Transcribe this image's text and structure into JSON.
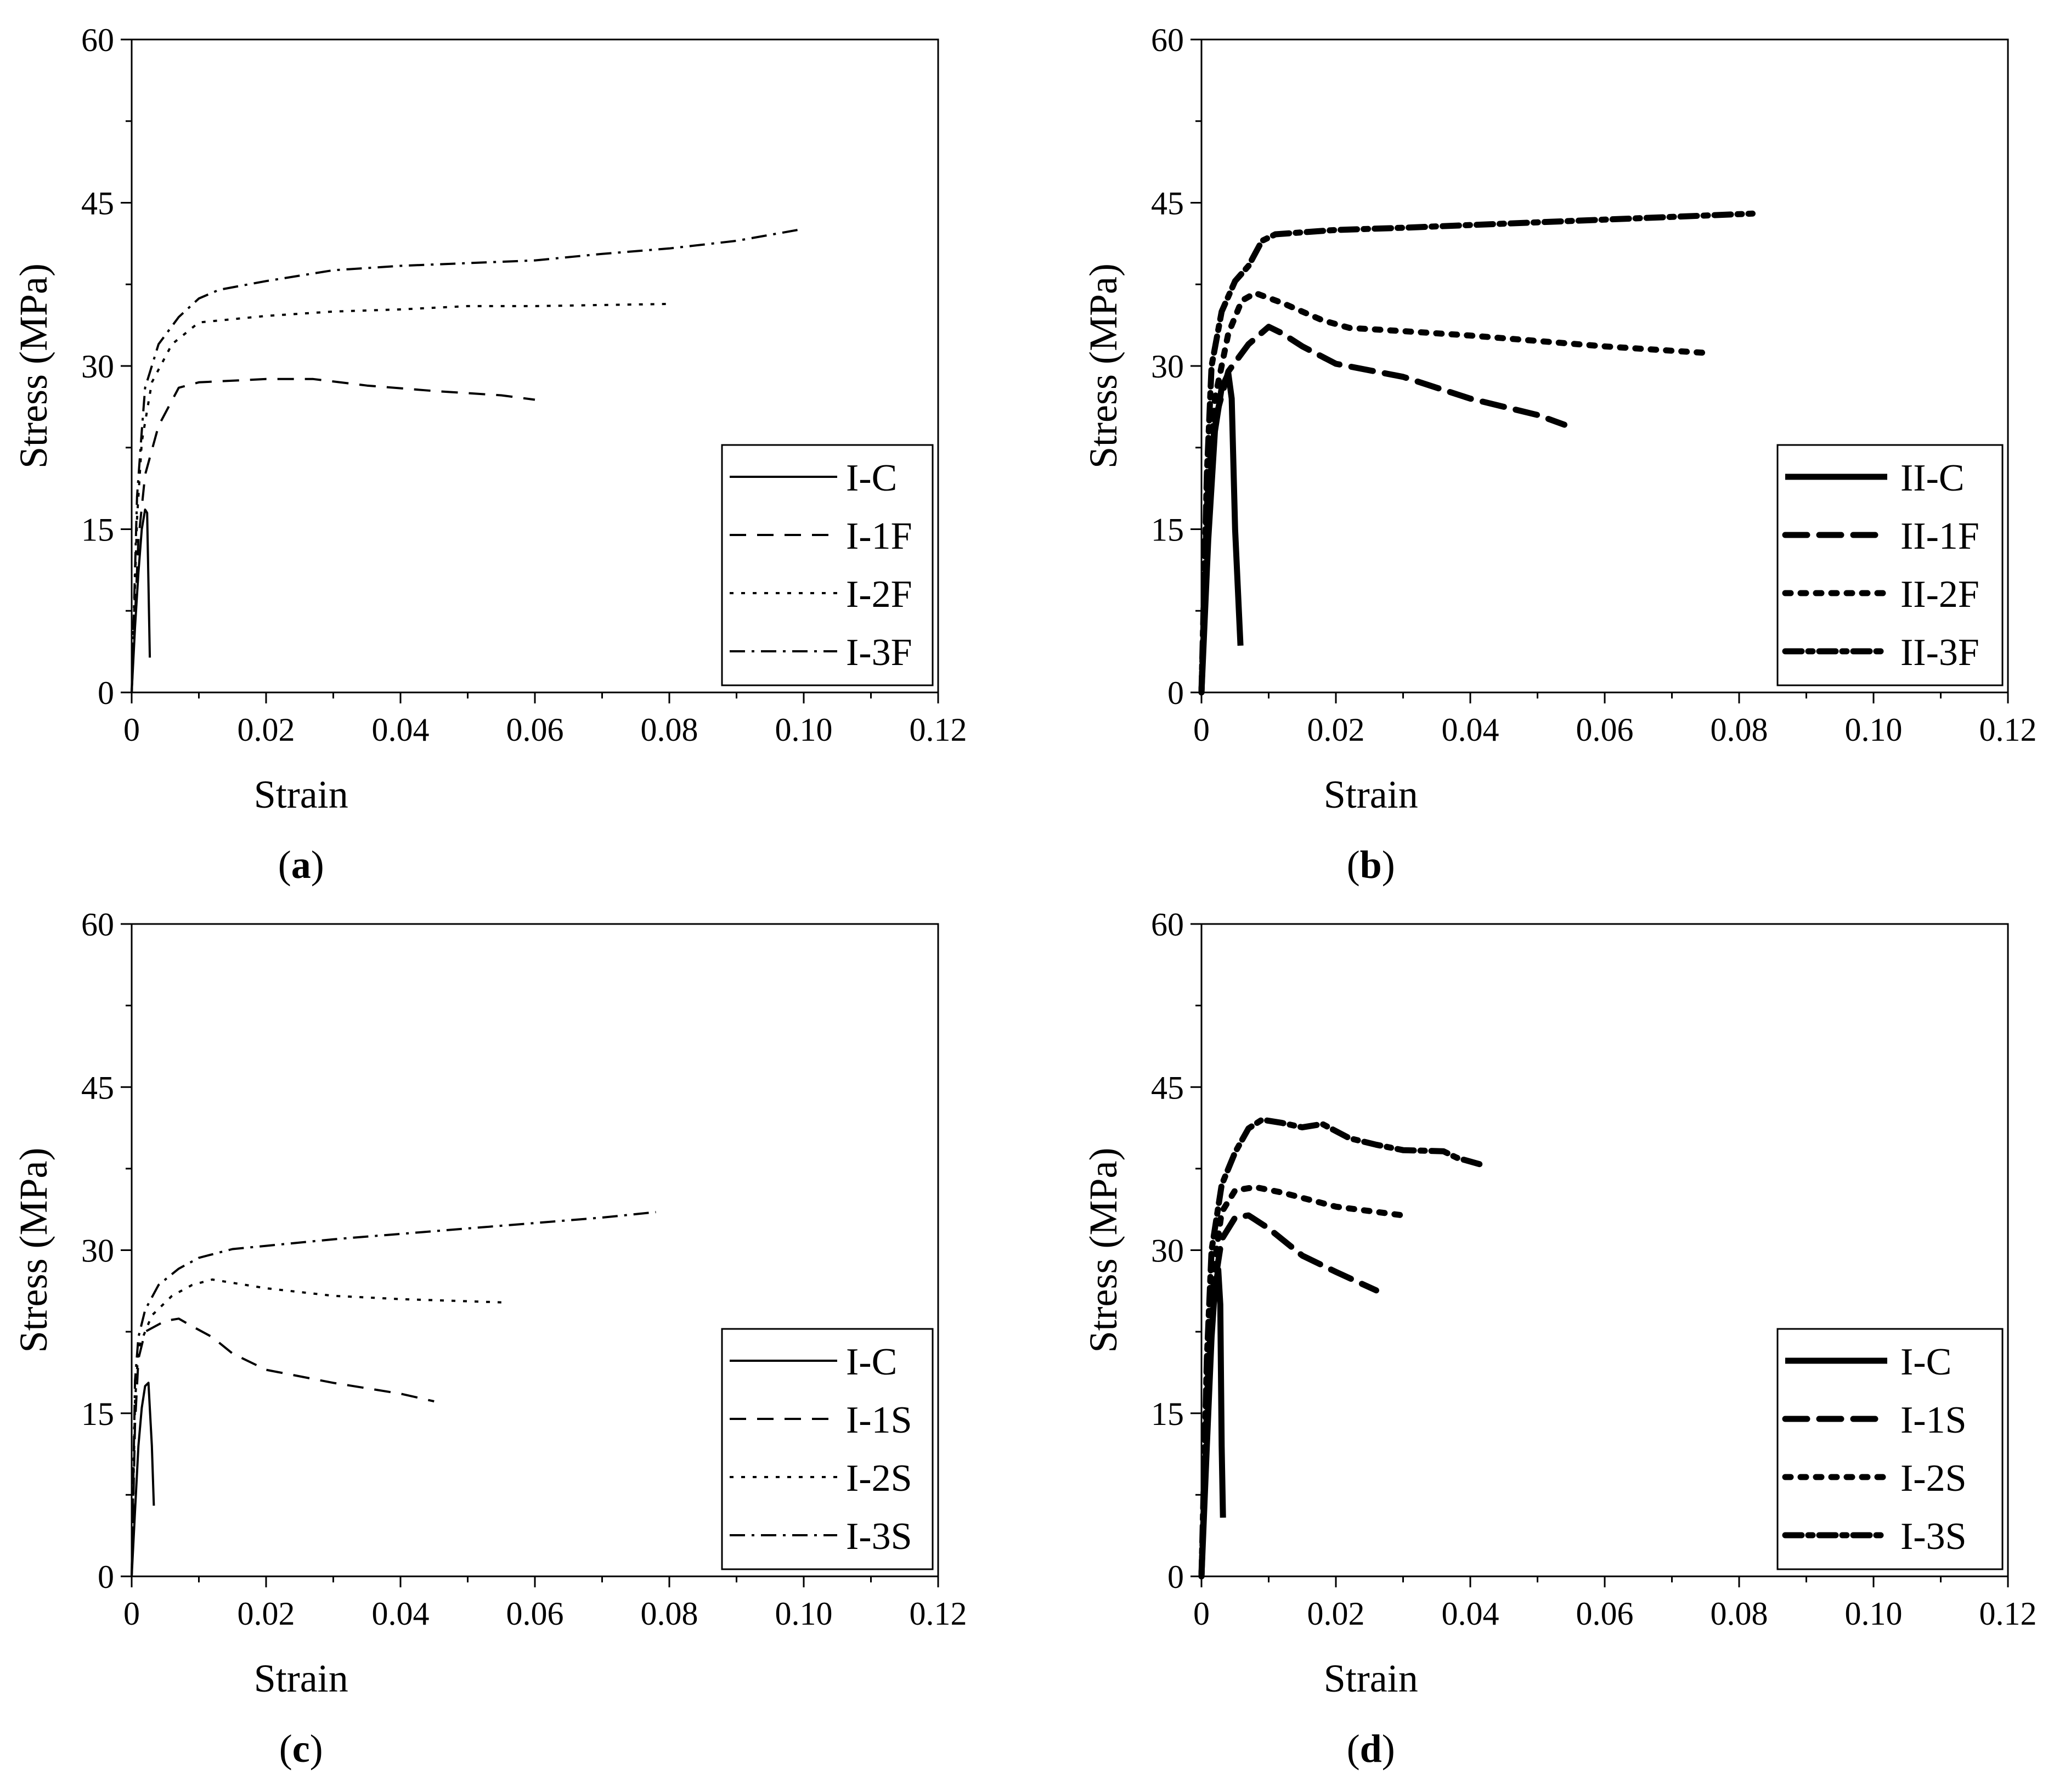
{
  "chart_data": [
    {
      "type": "line",
      "caption": "a",
      "xlabel": "Strain",
      "ylabel": "Stress (MPa)",
      "xlim": [
        0,
        0.12
      ],
      "ylim": [
        0,
        60
      ],
      "xticks": [
        0,
        0.02,
        0.04,
        0.06,
        0.08,
        0.1,
        0.12
      ],
      "xtick_labels": [
        "0",
        "0.02",
        "0.04",
        "0.06",
        "0.08",
        "0.10",
        "0.12"
      ],
      "yticks": [
        0,
        15,
        30,
        45,
        60
      ],
      "ytick_labels": [
        "0",
        "15",
        "30",
        "45",
        "60"
      ],
      "legend_position": "bottom-right",
      "line_weight": "thin",
      "series": [
        {
          "name": "I-C",
          "style": "solid",
          "points": [
            [
              0,
              0
            ],
            [
              0.0005,
              6
            ],
            [
              0.001,
              11
            ],
            [
              0.0015,
              15
            ],
            [
              0.002,
              16.8
            ],
            [
              0.0023,
              16.5
            ],
            [
              0.0025,
              10
            ],
            [
              0.0027,
              3.2
            ]
          ]
        },
        {
          "name": "I-1F",
          "style": "dashed",
          "points": [
            [
              0,
              0
            ],
            [
              0.001,
              14
            ],
            [
              0.002,
              20
            ],
            [
              0.004,
              24.5
            ],
            [
              0.007,
              28
            ],
            [
              0.01,
              28.5
            ],
            [
              0.02,
              28.8
            ],
            [
              0.027,
              28.8
            ],
            [
              0.035,
              28.2
            ],
            [
              0.045,
              27.7
            ],
            [
              0.055,
              27.3
            ],
            [
              0.06,
              26.9
            ]
          ]
        },
        {
          "name": "I-2F",
          "style": "dotted",
          "points": [
            [
              0,
              0
            ],
            [
              0.0008,
              16
            ],
            [
              0.0015,
              23
            ],
            [
              0.003,
              28.5
            ],
            [
              0.006,
              32
            ],
            [
              0.01,
              34
            ],
            [
              0.02,
              34.6
            ],
            [
              0.03,
              35
            ],
            [
              0.04,
              35.2
            ],
            [
              0.05,
              35.5
            ],
            [
              0.06,
              35.5
            ],
            [
              0.07,
              35.6
            ],
            [
              0.08,
              35.7
            ]
          ]
        },
        {
          "name": "I-3F",
          "style": "dashdot",
          "points": [
            [
              0,
              0
            ],
            [
              0.0008,
              18
            ],
            [
              0.0015,
              24
            ],
            [
              0.002,
              28
            ],
            [
              0.004,
              32
            ],
            [
              0.007,
              34.5
            ],
            [
              0.01,
              36.2
            ],
            [
              0.013,
              37
            ],
            [
              0.02,
              37.8
            ],
            [
              0.03,
              38.8
            ],
            [
              0.04,
              39.2
            ],
            [
              0.06,
              39.7
            ],
            [
              0.07,
              40.3
            ],
            [
              0.08,
              40.8
            ],
            [
              0.09,
              41.5
            ],
            [
              0.1,
              42.6
            ]
          ]
        }
      ]
    },
    {
      "type": "line",
      "caption": "b",
      "xlabel": "Strain",
      "ylabel": "Stress (MPa)",
      "xlim": [
        0,
        0.12
      ],
      "ylim": [
        0,
        60
      ],
      "xticks": [
        0,
        0.02,
        0.04,
        0.06,
        0.08,
        0.1,
        0.12
      ],
      "xtick_labels": [
        "0",
        "0.02",
        "0.04",
        "0.06",
        "0.08",
        "0.10",
        "0.12"
      ],
      "yticks": [
        0,
        15,
        30,
        45,
        60
      ],
      "ytick_labels": [
        "0",
        "15",
        "30",
        "45",
        "60"
      ],
      "legend_position": "bottom-right",
      "line_weight": "thick",
      "series": [
        {
          "name": "II-C",
          "style": "solid",
          "points": [
            [
              0,
              0
            ],
            [
              0.001,
              14
            ],
            [
              0.002,
              24
            ],
            [
              0.003,
              28
            ],
            [
              0.004,
              29.3
            ],
            [
              0.0045,
              27
            ],
            [
              0.005,
              15
            ],
            [
              0.0058,
              4.3
            ]
          ]
        },
        {
          "name": "II-1F",
          "style": "dashed",
          "points": [
            [
              0,
              0
            ],
            [
              0.001,
              17
            ],
            [
              0.002,
              25
            ],
            [
              0.004,
              29.5
            ],
            [
              0.007,
              32
            ],
            [
              0.01,
              33.6
            ],
            [
              0.012,
              33
            ],
            [
              0.015,
              31.8
            ],
            [
              0.02,
              30.2
            ],
            [
              0.03,
              29
            ],
            [
              0.04,
              27
            ],
            [
              0.05,
              25.5
            ],
            [
              0.054,
              24.6
            ]
          ]
        },
        {
          "name": "II-2F",
          "style": "dotted",
          "points": [
            [
              0,
              0
            ],
            [
              0.0008,
              17
            ],
            [
              0.002,
              27
            ],
            [
              0.004,
              33
            ],
            [
              0.006,
              36
            ],
            [
              0.008,
              36.7
            ],
            [
              0.012,
              35.8
            ],
            [
              0.018,
              34.2
            ],
            [
              0.022,
              33.5
            ],
            [
              0.03,
              33.2
            ],
            [
              0.04,
              32.8
            ],
            [
              0.05,
              32.3
            ],
            [
              0.06,
              31.8
            ],
            [
              0.075,
              31.2
            ]
          ]
        },
        {
          "name": "II-3F",
          "style": "dashdot",
          "points": [
            [
              0,
              0
            ],
            [
              0.0008,
              20
            ],
            [
              0.0015,
              30
            ],
            [
              0.003,
              35
            ],
            [
              0.005,
              37.8
            ],
            [
              0.007,
              39.2
            ],
            [
              0.009,
              41.5
            ],
            [
              0.011,
              42.1
            ],
            [
              0.02,
              42.5
            ],
            [
              0.03,
              42.7
            ],
            [
              0.05,
              43.2
            ],
            [
              0.07,
              43.7
            ],
            [
              0.082,
              44
            ]
          ]
        }
      ]
    },
    {
      "type": "line",
      "caption": "c",
      "xlabel": "Strain",
      "ylabel": "Stress (MPa)",
      "xlim": [
        0,
        0.12
      ],
      "ylim": [
        0,
        60
      ],
      "xticks": [
        0,
        0.02,
        0.04,
        0.06,
        0.08,
        0.1,
        0.12
      ],
      "xtick_labels": [
        "0",
        "0.02",
        "0.04",
        "0.06",
        "0.08",
        "0.10",
        "0.12"
      ],
      "yticks": [
        0,
        15,
        30,
        45,
        60
      ],
      "ytick_labels": [
        "0",
        "15",
        "30",
        "45",
        "60"
      ],
      "legend_position": "bottom-right",
      "line_weight": "thin",
      "series": [
        {
          "name": "I-C",
          "style": "solid",
          "points": [
            [
              0,
              0
            ],
            [
              0.0005,
              6
            ],
            [
              0.001,
              12
            ],
            [
              0.0015,
              15.5
            ],
            [
              0.002,
              17.5
            ],
            [
              0.0025,
              17.8
            ],
            [
              0.003,
              12
            ],
            [
              0.0033,
              6.5
            ]
          ]
        },
        {
          "name": "I-1S",
          "style": "dashed",
          "points": [
            [
              0,
              0
            ],
            [
              0.0005,
              14
            ],
            [
              0.001,
              20
            ],
            [
              0.002,
              22.5
            ],
            [
              0.005,
              23.5
            ],
            [
              0.007,
              23.7
            ],
            [
              0.009,
              23
            ],
            [
              0.012,
              22
            ],
            [
              0.015,
              20.5
            ],
            [
              0.02,
              19
            ],
            [
              0.03,
              17.8
            ],
            [
              0.04,
              16.8
            ],
            [
              0.045,
              16.1
            ]
          ]
        },
        {
          "name": "I-2S",
          "style": "dotted",
          "points": [
            [
              0,
              0
            ],
            [
              0.0005,
              16
            ],
            [
              0.001,
              21
            ],
            [
              0.003,
              24
            ],
            [
              0.006,
              25.8
            ],
            [
              0.009,
              26.8
            ],
            [
              0.012,
              27.3
            ],
            [
              0.02,
              26.5
            ],
            [
              0.03,
              25.8
            ],
            [
              0.04,
              25.5
            ],
            [
              0.05,
              25.3
            ],
            [
              0.055,
              25.2
            ]
          ]
        },
        {
          "name": "I-3S",
          "style": "dashdot",
          "points": [
            [
              0,
              0
            ],
            [
              0.0005,
              18
            ],
            [
              0.001,
              22
            ],
            [
              0.002,
              24.5
            ],
            [
              0.004,
              26.8
            ],
            [
              0.007,
              28.3
            ],
            [
              0.01,
              29.3
            ],
            [
              0.015,
              30.1
            ],
            [
              0.02,
              30.4
            ],
            [
              0.03,
              31
            ],
            [
              0.04,
              31.5
            ],
            [
              0.05,
              32
            ],
            [
              0.06,
              32.5
            ],
            [
              0.07,
              33
            ],
            [
              0.078,
              33.5
            ]
          ]
        }
      ]
    },
    {
      "type": "line",
      "caption": "d",
      "xlabel": "Strain",
      "ylabel": "Stress (MPa)",
      "xlim": [
        0,
        0.12
      ],
      "ylim": [
        0,
        60
      ],
      "xticks": [
        0,
        0.02,
        0.04,
        0.06,
        0.08,
        0.1,
        0.12
      ],
      "xtick_labels": [
        "0",
        "0.02",
        "0.04",
        "0.06",
        "0.08",
        "0.10",
        "0.12"
      ],
      "yticks": [
        0,
        15,
        30,
        45,
        60
      ],
      "ytick_labels": [
        "0",
        "15",
        "30",
        "45",
        "60"
      ],
      "legend_position": "bottom-right",
      "line_weight": "thick",
      "series": [
        {
          "name": "I-C",
          "style": "solid",
          "points": [
            [
              0,
              0
            ],
            [
              0.0008,
              12
            ],
            [
              0.0015,
              22
            ],
            [
              0.002,
              26.5
            ],
            [
              0.0025,
              28.2
            ],
            [
              0.0028,
              25
            ],
            [
              0.003,
              12
            ],
            [
              0.0032,
              5.4
            ]
          ]
        },
        {
          "name": "I-1S",
          "style": "dashed",
          "points": [
            [
              0,
              0
            ],
            [
              0.001,
              18
            ],
            [
              0.002,
              27
            ],
            [
              0.003,
              31
            ],
            [
              0.005,
              33
            ],
            [
              0.007,
              33.2
            ],
            [
              0.01,
              32
            ],
            [
              0.015,
              29.5
            ],
            [
              0.02,
              28
            ],
            [
              0.026,
              26.3
            ]
          ]
        },
        {
          "name": "I-2S",
          "style": "dotted",
          "points": [
            [
              0,
              0
            ],
            [
              0.001,
              19
            ],
            [
              0.002,
              29
            ],
            [
              0.003,
              33.5
            ],
            [
              0.005,
              35.5
            ],
            [
              0.008,
              35.8
            ],
            [
              0.012,
              35.3
            ],
            [
              0.02,
              34
            ],
            [
              0.03,
              33.2
            ]
          ]
        },
        {
          "name": "I-3S",
          "style": "dashdot",
          "points": [
            [
              0,
              0
            ],
            [
              0.0008,
              20
            ],
            [
              0.0015,
              30
            ],
            [
              0.003,
              36
            ],
            [
              0.005,
              39
            ],
            [
              0.007,
              41.2
            ],
            [
              0.009,
              42
            ],
            [
              0.012,
              41.7
            ],
            [
              0.015,
              41.3
            ],
            [
              0.018,
              41.6
            ],
            [
              0.022,
              40.3
            ],
            [
              0.026,
              39.7
            ],
            [
              0.03,
              39.2
            ],
            [
              0.036,
              39.1
            ],
            [
              0.038,
              38.5
            ],
            [
              0.042,
              37.8
            ]
          ]
        }
      ]
    }
  ]
}
